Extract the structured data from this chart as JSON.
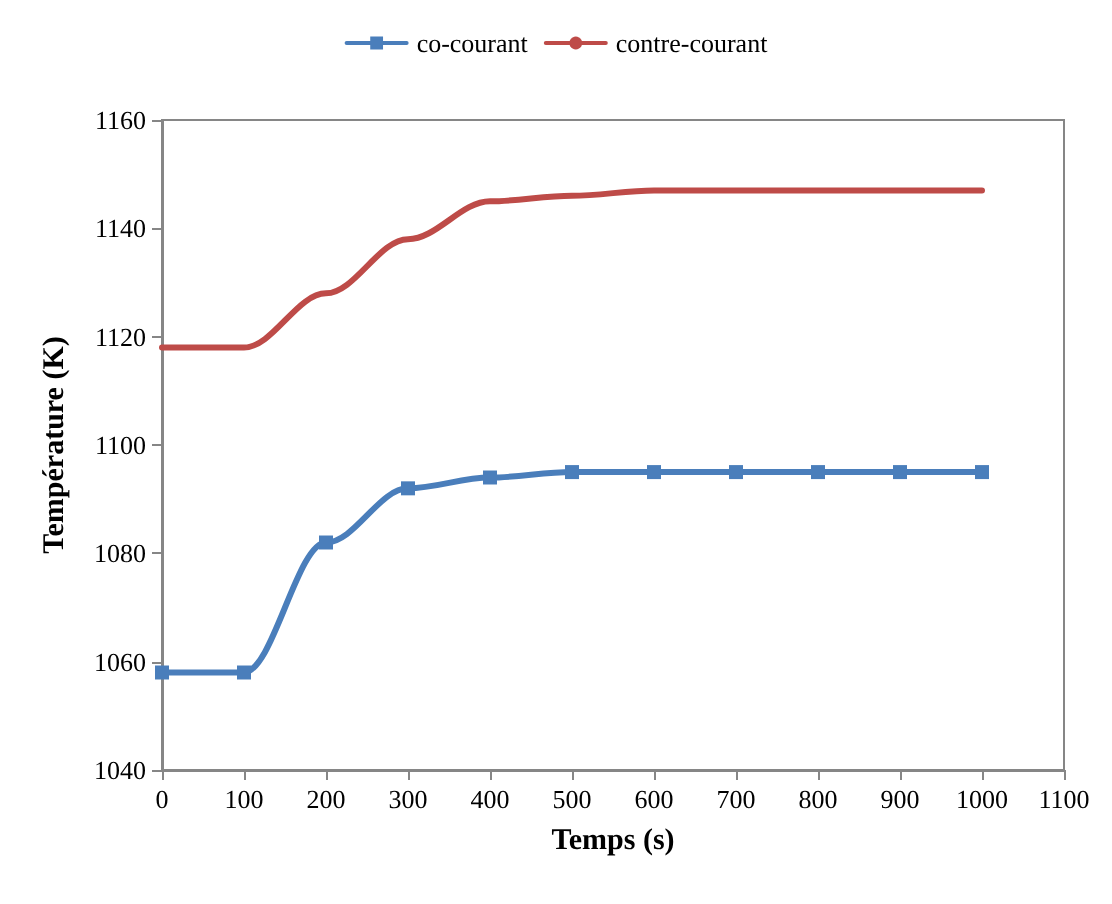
{
  "chart_data": {
    "type": "line",
    "xlabel": "Temps (s)",
    "ylabel": "Température (K)",
    "x": [
      0,
      100,
      200,
      300,
      400,
      500,
      600,
      700,
      800,
      900,
      1000
    ],
    "series": [
      {
        "name": "co-courant",
        "color": "#4a7ebb",
        "marker": "square",
        "values": [
          1058,
          1058,
          1082,
          1092,
          1094,
          1095,
          1095,
          1095,
          1095,
          1095,
          1095
        ]
      },
      {
        "name": "contre-courant",
        "color": "#be4b48",
        "marker": "none",
        "values": [
          1118,
          1118,
          1128,
          1138,
          1145,
          1146,
          1147,
          1147,
          1147,
          1147,
          1147
        ]
      }
    ],
    "xlim": [
      0,
      1100
    ],
    "xticks": [
      0,
      100,
      200,
      300,
      400,
      500,
      600,
      700,
      800,
      900,
      1000,
      1100
    ],
    "ylim": [
      1040,
      1160
    ],
    "yticks": [
      1040,
      1060,
      1080,
      1100,
      1120,
      1140,
      1160
    ],
    "grid": false,
    "legend": "top",
    "line_style": "solid"
  }
}
